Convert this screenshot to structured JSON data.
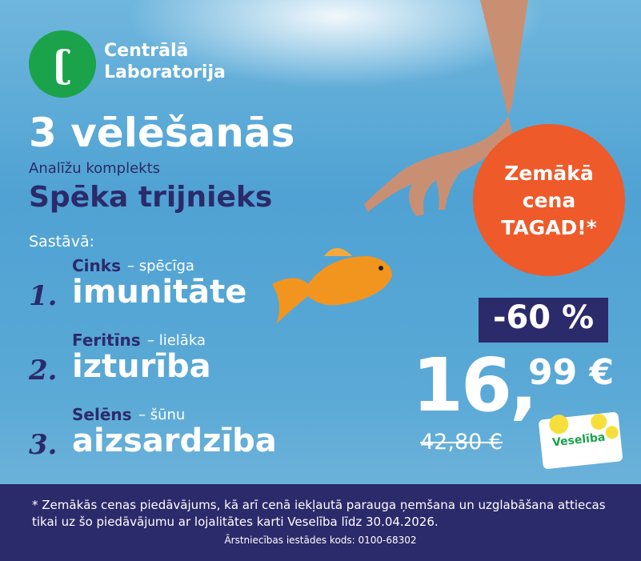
{
  "logo": {
    "line1": "Centrālā",
    "line2": "Laboratorija"
  },
  "headline": "3 vēlēšanās",
  "subtitle": "Analīžu komplekts",
  "product": "Spēka trijnieks",
  "composition_label": "Sastāvā:",
  "items": [
    {
      "number": "1.",
      "name": "Cinks",
      "desc": "– spēcīga",
      "benefit": "imunitāte"
    },
    {
      "number": "2.",
      "name": "Feritīns",
      "desc": "– lielāka",
      "benefit": "izturība"
    },
    {
      "number": "3.",
      "name": "Selēns",
      "desc": "– šūnu",
      "benefit": "aizsardzība"
    }
  ],
  "badge": {
    "line1": "Zemākā",
    "line2": "cena",
    "line3": "TAGAD!*"
  },
  "discount": "-60 %",
  "price": {
    "main": "16,",
    "cents": "99 €",
    "old": "42,80 €"
  },
  "card": "Veselība",
  "footer": {
    "note": "* Zemākās cenas piedāvājums, kā arī cenā iekļautā parauga ņemšana un uzglabāšana attiecas tikai uz šo piedāvājumu ar lojalitātes karti Veselība līdz 30.04.2026.",
    "code": "Ārstniecības iestādes kods: 0100-68302"
  }
}
